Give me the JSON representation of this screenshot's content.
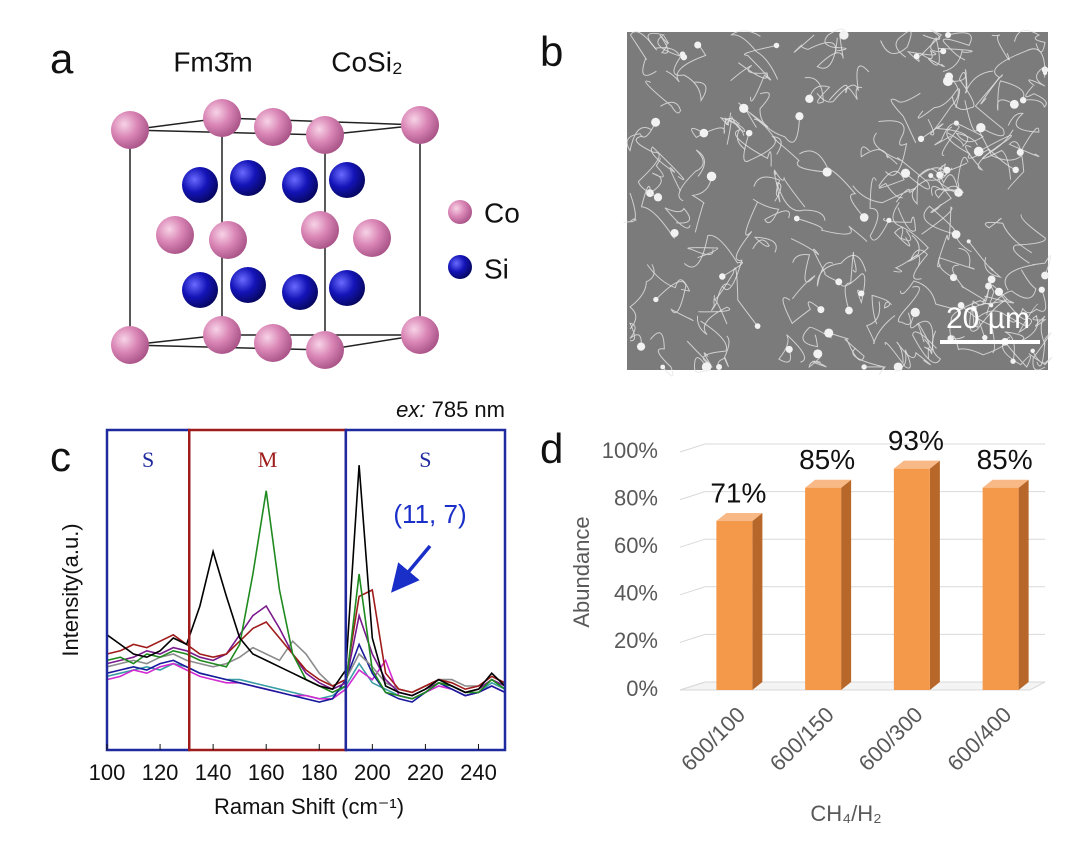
{
  "panel_a": {
    "label": "a",
    "space_group": "Fm3̄m",
    "formula": "CoSi₂",
    "legend": [
      "Co",
      "Si"
    ]
  },
  "panel_b": {
    "label": "b",
    "scale_bar": "20 µm"
  },
  "chart_data": [
    {
      "type": "line",
      "panel": "c",
      "annotation_top": [
        "ex:",
        "785 nm"
      ],
      "annotation": "(11, 7)",
      "xlabel": "Raman Shift (cm⁻¹)",
      "ylabel": "Intensity(a.u.)",
      "xlim": [
        100,
        250
      ],
      "xticks": [
        100,
        120,
        140,
        160,
        180,
        200,
        220,
        240
      ],
      "ylim": [
        0,
        100
      ],
      "regions": [
        {
          "label": "S",
          "range": [
            100,
            131
          ],
          "color": "#1f2a9e"
        },
        {
          "label": "M",
          "range": [
            131,
            190
          ],
          "color": "#a01c1c"
        },
        {
          "label": "S",
          "range": [
            190,
            250
          ],
          "color": "#1f2a9e"
        }
      ],
      "x": [
        100,
        105,
        110,
        115,
        120,
        125,
        130,
        135,
        140,
        145,
        150,
        155,
        160,
        165,
        170,
        175,
        180,
        185,
        190,
        195,
        200,
        205,
        210,
        215,
        220,
        225,
        230,
        235,
        240,
        245,
        250
      ],
      "series": [
        {
          "color": "#3a9ea5",
          "values": [
            23,
            24,
            25,
            26,
            25,
            27,
            26,
            24,
            23,
            22,
            22,
            21,
            20,
            19,
            18,
            17,
            16,
            17,
            20,
            27,
            21,
            19,
            17,
            16,
            18,
            21,
            19,
            17,
            18,
            21,
            19
          ]
        },
        {
          "color": "#d02ad0",
          "values": [
            22,
            23,
            25,
            24,
            26,
            27,
            25,
            23,
            22,
            21,
            21,
            20,
            19,
            18,
            17,
            17,
            16,
            16,
            19,
            25,
            22,
            28,
            17,
            16,
            18,
            20,
            19,
            17,
            18,
            20,
            18
          ]
        },
        {
          "color": "#1a1a9c",
          "values": [
            24,
            25,
            26,
            25,
            27,
            28,
            26,
            24,
            23,
            22,
            21,
            20,
            19,
            18,
            17,
            16,
            15,
            16,
            22,
            33,
            24,
            18,
            16,
            15,
            18,
            21,
            19,
            17,
            18,
            20,
            18
          ]
        },
        {
          "color": "#8c8c8c",
          "values": [
            26,
            27,
            28,
            27,
            29,
            30,
            28,
            27,
            26,
            27,
            29,
            32,
            30,
            28,
            34,
            30,
            24,
            20,
            22,
            30,
            26,
            21,
            19,
            18,
            20,
            22,
            22,
            20,
            20,
            23,
            21
          ]
        },
        {
          "color": "#7a1a8c",
          "values": [
            27,
            28,
            29,
            31,
            30,
            32,
            31,
            29,
            28,
            30,
            36,
            42,
            45,
            38,
            30,
            24,
            21,
            19,
            21,
            42,
            30,
            22,
            18,
            17,
            19,
            21,
            20,
            18,
            19,
            22,
            20
          ]
        },
        {
          "color": "#a01c1c",
          "values": [
            30,
            31,
            33,
            32,
            34,
            36,
            33,
            30,
            29,
            30,
            34,
            38,
            40,
            35,
            30,
            25,
            22,
            20,
            22,
            48,
            50,
            24,
            19,
            18,
            20,
            22,
            21,
            19,
            20,
            23,
            21
          ]
        },
        {
          "color": "#1f8a1f",
          "values": [
            28,
            29,
            27,
            30,
            29,
            31,
            30,
            28,
            27,
            26,
            33,
            55,
            81,
            50,
            30,
            22,
            20,
            18,
            20,
            55,
            25,
            18,
            17,
            16,
            18,
            21,
            20,
            18,
            18,
            22,
            19
          ]
        },
        {
          "color": "#000000",
          "values": [
            36,
            33,
            30,
            29,
            31,
            35,
            33,
            45,
            62,
            48,
            35,
            30,
            28,
            26,
            24,
            22,
            20,
            19,
            25,
            89,
            35,
            20,
            18,
            17,
            19,
            22,
            20,
            18,
            19,
            24,
            20
          ]
        }
      ]
    },
    {
      "type": "bar3d",
      "panel": "d",
      "xlabel": "CH₄/H₂",
      "ylabel": "Abundance",
      "color": "#f4984a",
      "categories": [
        "600/100",
        "600/150",
        "600/300",
        "600/400"
      ],
      "values": [
        71,
        85,
        93,
        85
      ],
      "value_labels": [
        "71%",
        "85%",
        "93%",
        "85%"
      ],
      "ylim": [
        0,
        100
      ],
      "yticks": [
        {
          "value": 0,
          "label": "0%"
        },
        {
          "value": 20,
          "label": "20%"
        },
        {
          "value": 40,
          "label": "40%"
        },
        {
          "value": 60,
          "label": "60%"
        },
        {
          "value": 80,
          "label": "80%"
        },
        {
          "value": 100,
          "label": "100%"
        }
      ],
      "grid": true
    }
  ]
}
